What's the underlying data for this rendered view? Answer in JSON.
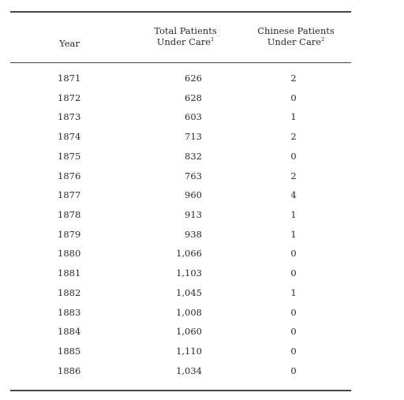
{
  "table": {
    "columns": {
      "year": "Year",
      "total_line1": "Total Patients",
      "total_line2": "Under Care",
      "total_note": "1",
      "chinese_line1": "Chinese Patients",
      "chinese_line2": "Under Care",
      "chinese_note": "2"
    },
    "rows": [
      {
        "year": "1871",
        "total": "626",
        "chinese": "2"
      },
      {
        "year": "1872",
        "total": "628",
        "chinese": "0"
      },
      {
        "year": "1873",
        "total": "603",
        "chinese": "1"
      },
      {
        "year": "1874",
        "total": "713",
        "chinese": "2"
      },
      {
        "year": "1875",
        "total": "832",
        "chinese": "0"
      },
      {
        "year": "1876",
        "total": "763",
        "chinese": "2"
      },
      {
        "year": "1877",
        "total": "960",
        "chinese": "4"
      },
      {
        "year": "1878",
        "total": "913",
        "chinese": "1"
      },
      {
        "year": "1879",
        "total": "938",
        "chinese": "1"
      },
      {
        "year": "1880",
        "total": "1,066",
        "chinese": "0"
      },
      {
        "year": "1881",
        "total": "1,103",
        "chinese": "0"
      },
      {
        "year": "1882",
        "total": "1,045",
        "chinese": "1"
      },
      {
        "year": "1883",
        "total": "1,008",
        "chinese": "0"
      },
      {
        "year": "1884",
        "total": "1,060",
        "chinese": "0"
      },
      {
        "year": "1885",
        "total": "1,110",
        "chinese": "0"
      },
      {
        "year": "1886",
        "total": "1,034",
        "chinese": "0"
      }
    ]
  }
}
